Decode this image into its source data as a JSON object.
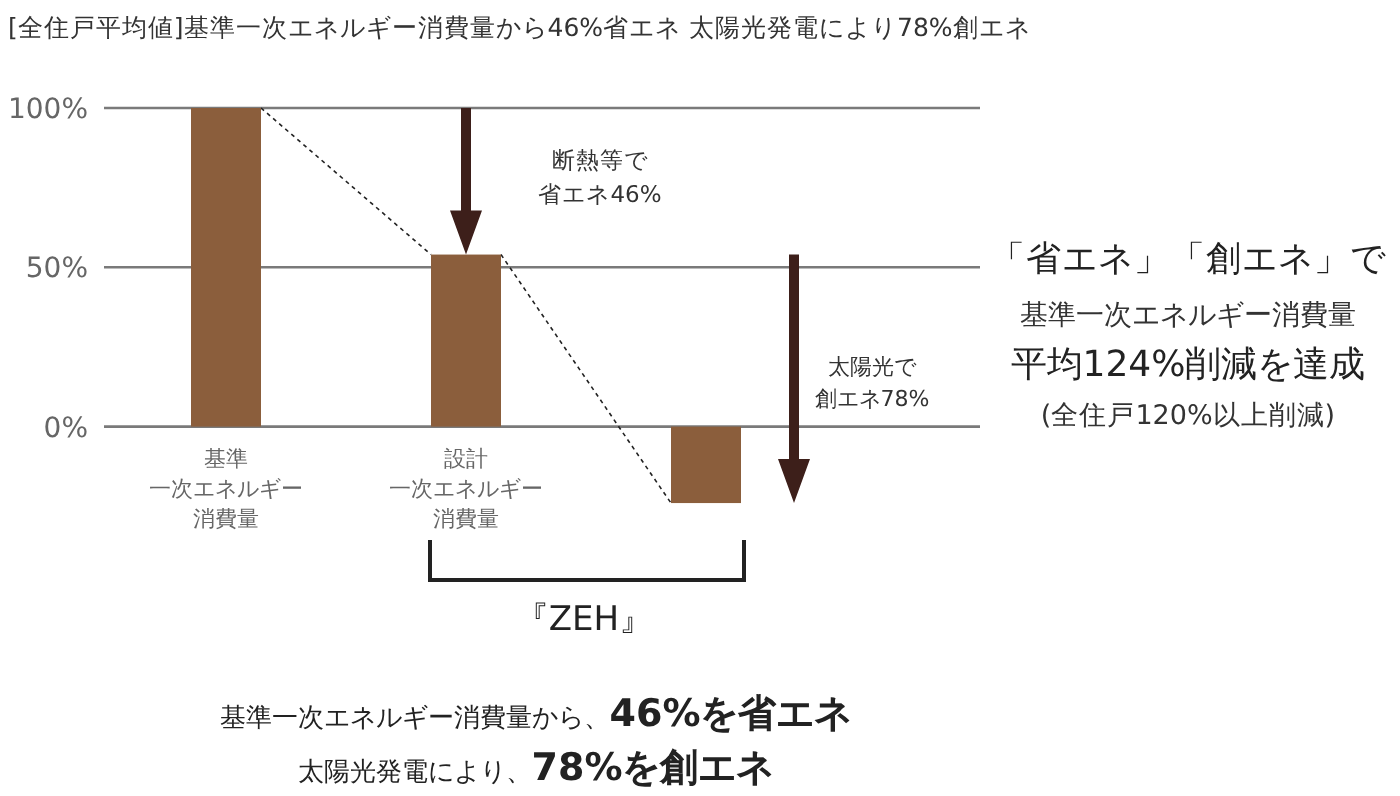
{
  "chart_data": {
    "type": "bar",
    "title": "[全住戸平均値]基準一次エネルギー消費量から46%省エネ 太陽光発電により78%創エネ",
    "categories": [
      "基準一次エネルギー消費量",
      "設計一次エネルギー消費量",
      null
    ],
    "values": [
      100,
      54,
      -24
    ],
    "color": "#8b5e3c",
    "ylim": [
      -24,
      100
    ],
    "yticks": [
      {
        "value": 0,
        "label": "0%"
      },
      {
        "value": 50,
        "label": "50%"
      },
      {
        "value": 100,
        "label": "100%"
      }
    ],
    "grid": "y",
    "annotations": [
      "断熱等で省エネ46%",
      "太陽光で創エネ78%",
      "「省エネ」「創エネ」で",
      "基準一次エネルギー消費量",
      "平均124%削減を達成",
      "(全住戸120%以上削減)",
      "『ZEH』",
      "基準一次エネルギー消費量から、**46%を省エネ**",
      "太陽光発電により、**78%を創エネ**"
    ]
  }
}
